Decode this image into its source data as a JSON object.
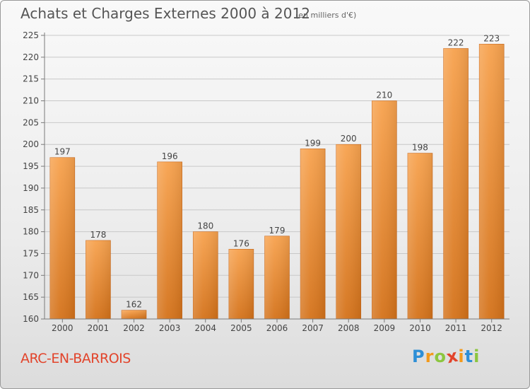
{
  "header": {
    "title": "Achats et Charges Externes 2000 à 2012",
    "unit": "(en milliers d'€)"
  },
  "footer": {
    "town": "ARC-EN-BARROIS",
    "logo_letters": [
      "P",
      "r",
      "o",
      "x",
      "i",
      "t",
      "i"
    ],
    "logo_colors": [
      "#2e8fd6",
      "#f39a1b",
      "#8cc63f",
      "#e2442b",
      "#f39a1b",
      "#2e8fd6",
      "#8cc63f"
    ]
  },
  "colors": {
    "bar_top": "#f7a24e",
    "bar_bottom": "#d4721a",
    "grid": "#c8c8c8",
    "axis": "#7a7a7a",
    "text": "#444444"
  },
  "chart_data": {
    "type": "bar",
    "title": "Achats et Charges Externes 2000 à 2012",
    "subtitle": "(en milliers d'€)",
    "xlabel": "",
    "ylabel": "",
    "categories": [
      "2000",
      "2001",
      "2002",
      "2003",
      "2004",
      "2005",
      "2006",
      "2007",
      "2008",
      "2009",
      "2010",
      "2011",
      "2012"
    ],
    "values": [
      197,
      178,
      162,
      196,
      180,
      176,
      179,
      199,
      200,
      210,
      198,
      222,
      223
    ],
    "ylim": [
      160,
      225
    ],
    "yticks": [
      160,
      165,
      170,
      175,
      180,
      185,
      190,
      195,
      200,
      205,
      210,
      215,
      220,
      225
    ],
    "grid": true
  }
}
